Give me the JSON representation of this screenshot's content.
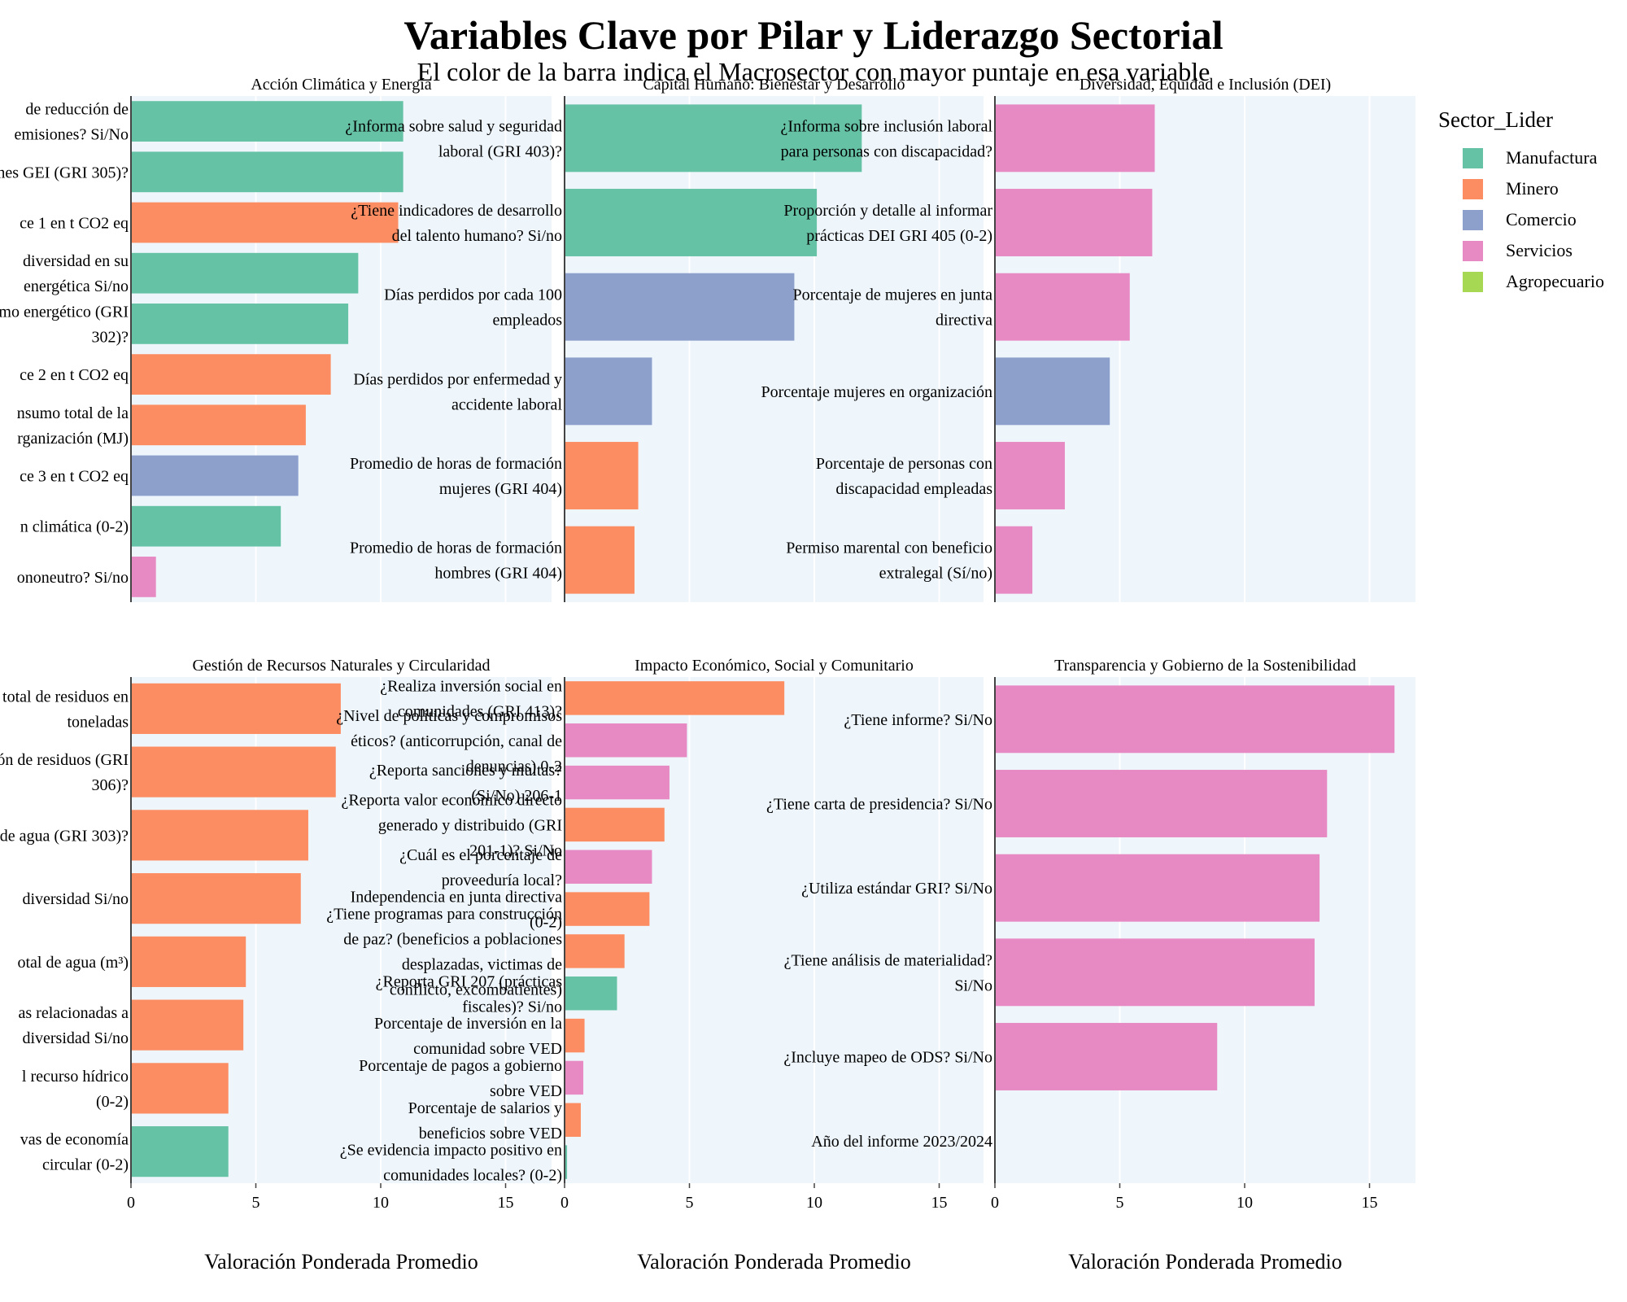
{
  "chart_data": {
    "type": "bar",
    "orientation": "horizontal",
    "title": "Variables Clave por Pilar y Liderazgo Sectorial",
    "subtitle": "El color de la barra indica el Macrosector con mayor puntaje en esa variable",
    "xlabel": "Valoración Ponderada Promedio",
    "xlim": [
      0,
      17
    ],
    "xticks": [
      0,
      5,
      10,
      15
    ],
    "grid": true,
    "legend": {
      "title": "Sector_Lider",
      "position": "top-right",
      "items": [
        {
          "name": "Manufactura",
          "color": "#66c2a5"
        },
        {
          "name": "Minero",
          "color": "#fc8d62"
        },
        {
          "name": "Comercio",
          "color": "#8da0cb"
        },
        {
          "name": "Servicios",
          "color": "#e78ac3"
        },
        {
          "name": "Agropecuario",
          "color": "#a6d854"
        }
      ]
    },
    "panels": [
      {
        "title": "Acción Climática y Energía",
        "bars": [
          {
            "label": "de reducción de emisiones? Si/No",
            "value": 10.9,
            "sector": "Manufactura"
          },
          {
            "label": "siones GEI (GRI 305)?",
            "value": 10.9,
            "sector": "Manufactura"
          },
          {
            "label": "ce 1 en t CO2 eq",
            "value": 10.7,
            "sector": "Minero"
          },
          {
            "label": "diversidad en su energética Si/no",
            "value": 9.1,
            "sector": "Manufactura"
          },
          {
            "label": "sumo energético (GRI 302)?",
            "value": 8.7,
            "sector": "Manufactura"
          },
          {
            "label": "ce 2 en t CO2 eq",
            "value": 8.0,
            "sector": "Minero"
          },
          {
            "label": "nsumo total de la rganización (MJ)",
            "value": 7.0,
            "sector": "Minero"
          },
          {
            "label": "ce 3 en t CO2 eq",
            "value": 6.7,
            "sector": "Comercio"
          },
          {
            "label": "n climática (0-2)",
            "value": 6.0,
            "sector": "Manufactura"
          },
          {
            "label": "ononeutro? Si/no",
            "value": 1.0,
            "sector": "Servicios"
          }
        ]
      },
      {
        "title": "Capital Humano: Bienestar y Desarrollo",
        "bars": [
          {
            "label": "¿Informa sobre salud y seguridad laboral (GRI 403)?",
            "value": 11.9,
            "sector": "Manufactura"
          },
          {
            "label": "¿Tiene indicadores de desarrollo del talento humano? Si/no",
            "value": 10.1,
            "sector": "Manufactura"
          },
          {
            "label": "Días perdidos por cada 100 empleados",
            "value": 9.2,
            "sector": "Comercio"
          },
          {
            "label": "Días perdidos por enfermedad y accidente laboral",
            "value": 3.5,
            "sector": "Comercio"
          },
          {
            "label": "Promedio de horas de formación mujeres (GRI 404)",
            "value": 2.95,
            "sector": "Minero"
          },
          {
            "label": "Promedio de horas de formación hombres (GRI 404)",
            "value": 2.8,
            "sector": "Minero"
          }
        ]
      },
      {
        "title": "Diversidad, Equidad e Inclusión (DEI)",
        "bars": [
          {
            "label": "¿Informa sobre inclusión laboral para personas con discapacidad?",
            "value": 6.4,
            "sector": "Servicios"
          },
          {
            "label": "Proporción y detalle al informar prácticas DEI GRI 405 (0-2)",
            "value": 6.3,
            "sector": "Servicios"
          },
          {
            "label": "Porcentaje de mujeres en junta directiva",
            "value": 5.4,
            "sector": "Servicios"
          },
          {
            "label": "Porcentaje mujeres en organización",
            "value": 4.6,
            "sector": "Comercio"
          },
          {
            "label": "Porcentaje de personas con discapacidad empleadas",
            "value": 2.8,
            "sector": "Servicios"
          },
          {
            "label": "Permiso marental con beneficio extralegal (Sí/no)",
            "value": 1.5,
            "sector": "Servicios"
          }
        ]
      },
      {
        "title": "Gestión de Recursos Naturales y Circularidad",
        "bars": [
          {
            "label": "total de residuos en toneladas",
            "value": 8.4,
            "sector": "Minero"
          },
          {
            "label": "stión de residuos (GRI 306)?",
            "value": 8.2,
            "sector": "Minero"
          },
          {
            "label": "so de agua (GRI 303)?",
            "value": 7.1,
            "sector": "Minero"
          },
          {
            "label": "diversidad Si/no",
            "value": 6.8,
            "sector": "Minero"
          },
          {
            "label": "otal de agua (m³)",
            "value": 4.6,
            "sector": "Minero"
          },
          {
            "label": "as relacionadas a diversidad Si/no",
            "value": 4.5,
            "sector": "Minero"
          },
          {
            "label": "l recurso hídrico (0-2)",
            "value": 3.9,
            "sector": "Minero"
          },
          {
            "label": "vas de economía circular (0-2)",
            "value": 3.9,
            "sector": "Manufactura"
          }
        ]
      },
      {
        "title": "Impacto Económico, Social y Comunitario",
        "bars": [
          {
            "label": "¿Realiza inversión social en comunidades (GRI 413)?",
            "value": 8.8,
            "sector": "Minero"
          },
          {
            "label": "¿Nivel de políticas y compromisos éticos? (anticorrupción, canal de denuncias) 0-2",
            "value": 4.9,
            "sector": "Servicios"
          },
          {
            "label": "¿Reporta sanciones y multas? (Si/No) 206-1",
            "value": 4.2,
            "sector": "Servicios"
          },
          {
            "label": "¿Reporta valor económico directo generado y distribuido (GRI 201-1)? Si/No",
            "value": 4.0,
            "sector": "Minero"
          },
          {
            "label": "¿Cuál es el porcentaje de proveeduría local?",
            "value": 3.5,
            "sector": "Servicios"
          },
          {
            "label": "Independencia en junta directiva (0-2)",
            "value": 3.4,
            "sector": "Minero"
          },
          {
            "label": "¿Tiene programas para construcción de paz? (beneficios a poblaciones desplazadas, victimas de conflicto, excombatientes)",
            "value": 2.4,
            "sector": "Minero"
          },
          {
            "label": "¿Reporta GRI 207 (prácticas fiscales)? Si/no",
            "value": 2.1,
            "sector": "Manufactura"
          },
          {
            "label": "Porcentaje de inversión en la comunidad sobre VED",
            "value": 0.8,
            "sector": "Minero"
          },
          {
            "label": "Porcentaje de pagos a gobierno sobre VED",
            "value": 0.75,
            "sector": "Servicios"
          },
          {
            "label": "Porcentaje de salarios y beneficios sobre VED",
            "value": 0.65,
            "sector": "Minero"
          },
          {
            "label": "¿Se evidencia impacto positivo en comunidades locales? (0-2)",
            "value": 0.1,
            "sector": "Manufactura"
          }
        ]
      },
      {
        "title": "Transparencia y Gobierno de la Sostenibilidad",
        "bars": [
          {
            "label": "¿Tiene informe? Si/No",
            "value": 16.0,
            "sector": "Servicios"
          },
          {
            "label": "¿Tiene carta de presidencia? Si/No",
            "value": 13.3,
            "sector": "Servicios"
          },
          {
            "label": "¿Utiliza estándar GRI? Si/No",
            "value": 13.0,
            "sector": "Servicios"
          },
          {
            "label": "¿Tiene análisis de materialidad? Si/No",
            "value": 12.8,
            "sector": "Servicios"
          },
          {
            "label": "¿Incluye mapeo de ODS? Si/No",
            "value": 8.9,
            "sector": "Servicios"
          },
          {
            "label": "Año del informe 2023/2024",
            "value": 0,
            "sector": "Servicios"
          }
        ]
      }
    ]
  }
}
